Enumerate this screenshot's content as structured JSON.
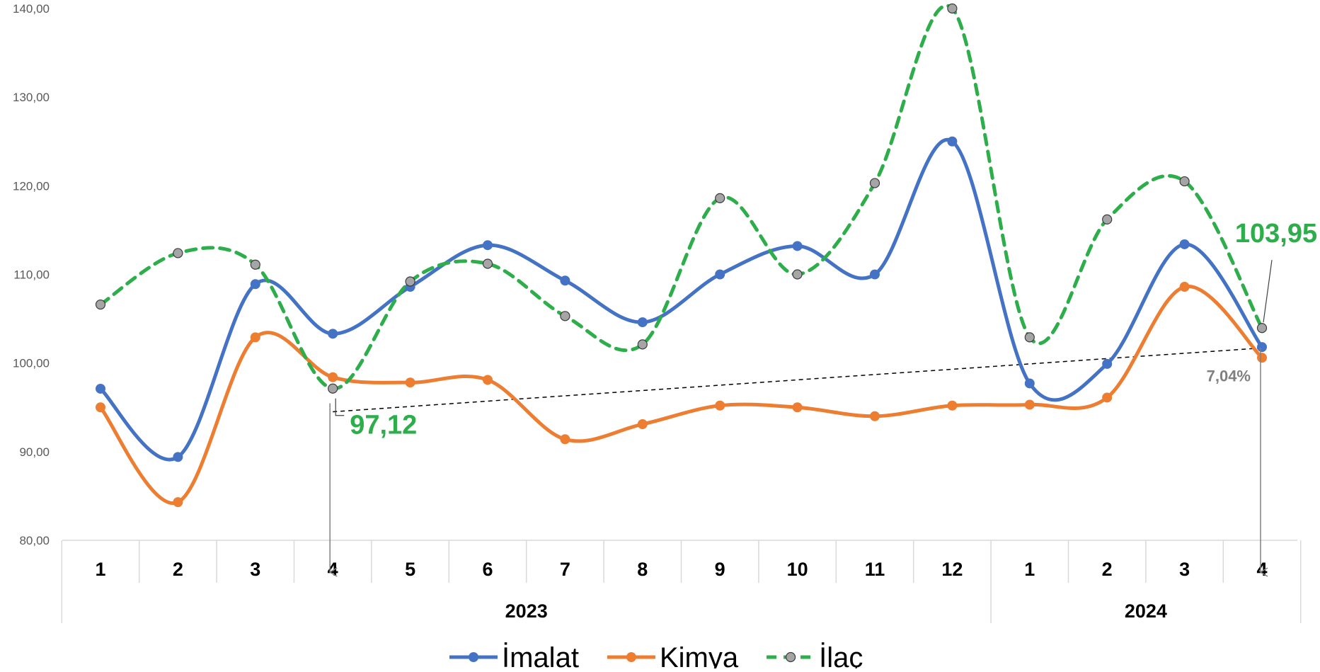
{
  "chart_data": {
    "type": "line",
    "title": "",
    "xlabel": "",
    "ylabel": "",
    "ylim": [
      80,
      140
    ],
    "yticks": [
      "80,00",
      "90,00",
      "100,00",
      "110,00",
      "120,00",
      "130,00",
      "140,00"
    ],
    "categories": [
      "1",
      "2",
      "3",
      "4",
      "5",
      "6",
      "7",
      "8",
      "9",
      "10",
      "11",
      "12",
      "1",
      "2",
      "3",
      "4"
    ],
    "year_groups": [
      {
        "label": "2023",
        "count": 12
      },
      {
        "label": "2024",
        "count": 4
      }
    ],
    "series": [
      {
        "name": "İmalat",
        "color": "#4472C4",
        "dashed": false,
        "values": [
          97.1,
          89.4,
          108.9,
          103.3,
          108.6,
          113.3,
          109.3,
          104.6,
          110.0,
          113.2,
          110.0,
          125.0,
          97.7,
          99.9,
          113.4,
          101.8
        ]
      },
      {
        "name": "Kimya",
        "color": "#ED7D31",
        "dashed": false,
        "values": [
          95.0,
          84.3,
          102.9,
          98.4,
          97.8,
          98.1,
          91.4,
          93.1,
          95.2,
          95.0,
          94.0,
          95.2,
          95.3,
          96.1,
          108.6,
          100.6
        ]
      },
      {
        "name": "İlaç",
        "color": "#2EAD4B",
        "dashed": true,
        "marker_fill": "#A5A5A5",
        "values": [
          106.6,
          112.4,
          111.1,
          97.12,
          109.2,
          111.2,
          105.3,
          102.1,
          118.6,
          110.0,
          120.3,
          140.0,
          102.9,
          116.2,
          120.5,
          103.95
        ]
      }
    ],
    "annotations": [
      {
        "text": "97,12",
        "color": "#2EAD4B",
        "point_index": 3
      },
      {
        "text": "103,95",
        "color": "#2EAD4B",
        "point_index": 15
      },
      {
        "text": "7,04%",
        "color": "#7F7F7F",
        "kind": "trend"
      }
    ],
    "trend_line": {
      "from_index": 3,
      "to_index": 15,
      "from_value": 94.5,
      "to_value": 101.7
    },
    "legend": "bottom",
    "grid": false
  }
}
